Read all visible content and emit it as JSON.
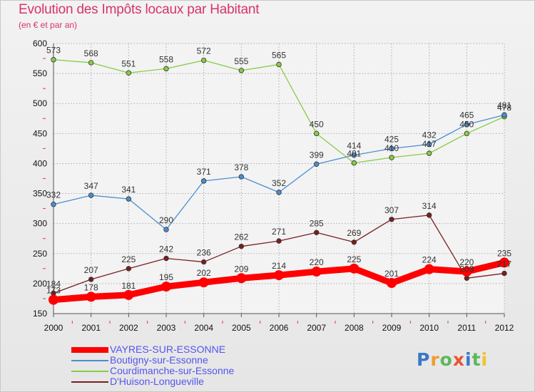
{
  "title": "Evolution des Impôts locaux par Habitant",
  "subtitle": "(en € et par an)",
  "logo": {
    "letters": [
      {
        "ch": "P",
        "color": "#3a78c8"
      },
      {
        "ch": "r",
        "color": "#f29b2e"
      },
      {
        "ch": "o",
        "color": "#5cb85c"
      },
      {
        "ch": "x",
        "color": "#e8542f"
      },
      {
        "ch": "i",
        "color": "#3a78c8"
      },
      {
        "ch": "t",
        "color": "#5cb85c"
      },
      {
        "ch": "i",
        "color": "#f2c12e"
      }
    ]
  },
  "chart_data": {
    "type": "line",
    "x": [
      2000,
      2001,
      2002,
      2003,
      2004,
      2005,
      2006,
      2007,
      2008,
      2009,
      2010,
      2011,
      2012
    ],
    "xlabels": [
      "2000",
      "2001",
      "2002",
      "2003",
      "2004",
      "2005",
      "2006",
      "2007",
      "2008",
      "2009",
      "2010",
      "2011",
      "2012"
    ],
    "ylim": [
      150,
      600
    ],
    "yticks": [
      150,
      200,
      250,
      300,
      350,
      400,
      450,
      500,
      550,
      600
    ],
    "grid": true,
    "legend_position": "bottom-left",
    "series": [
      {
        "name": "Courdimanche-sur-Essonne",
        "color": "#88cc44",
        "values": [
          573,
          568,
          551,
          558,
          572,
          555,
          565,
          450,
          401,
          410,
          417,
          450,
          478
        ]
      },
      {
        "name": "Boutigny-sur-Essonne",
        "color": "#4a8ed0",
        "values": [
          332,
          347,
          341,
          290,
          371,
          378,
          352,
          399,
          414,
          425,
          432,
          465,
          481
        ]
      },
      {
        "name": "D'Huison-Longueville",
        "color": "#7a1e1e",
        "values": [
          184,
          207,
          225,
          242,
          236,
          262,
          271,
          285,
          269,
          307,
          314,
          209,
          217
        ]
      },
      {
        "name": "VAYRES-SUR-ESSONNE",
        "color": "#ff0000",
        "values": [
          173,
          178,
          181,
          195,
          202,
          209,
          214,
          220,
          225,
          201,
          224,
          220,
          235
        ]
      }
    ],
    "legend_order": [
      "VAYRES-SUR-ESSONNE",
      "Boutigny-sur-Essonne",
      "Courdimanche-sur-Essonne",
      "D'Huison-Longueville"
    ]
  }
}
